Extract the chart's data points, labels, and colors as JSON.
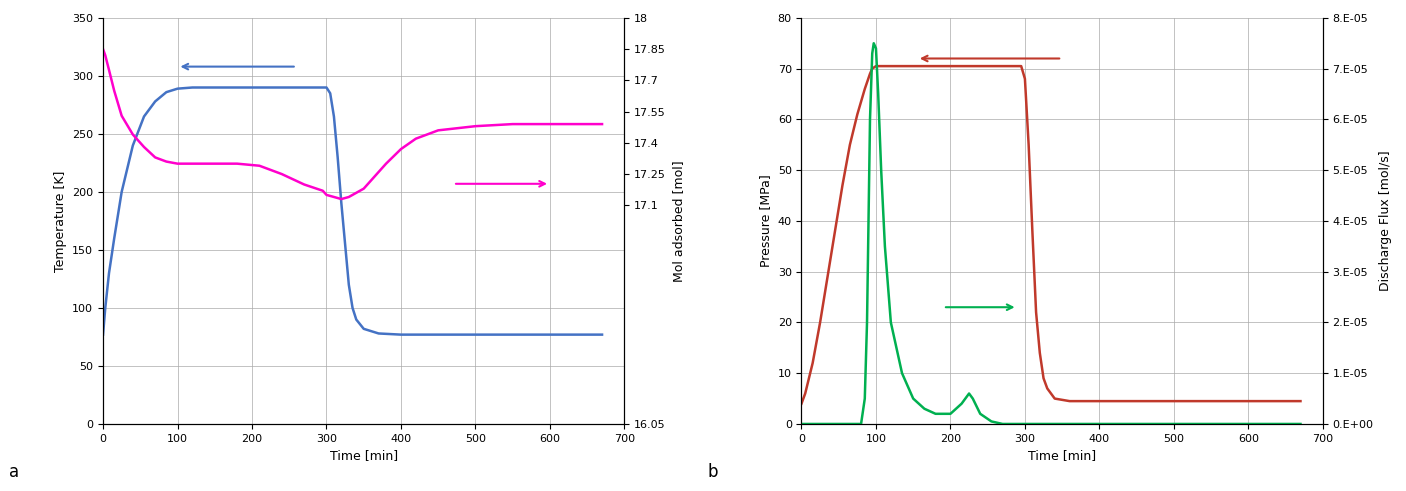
{
  "left": {
    "xlabel": "Time [min]",
    "ylabel_left": "Temperature [K]",
    "ylabel_right": "Mol adsorbed [mol]",
    "xlim": [
      0,
      700
    ],
    "ylim_left": [
      0,
      350
    ],
    "ylim_right": [
      16.05,
      18
    ],
    "yticks_left": [
      0,
      50,
      100,
      150,
      200,
      250,
      300,
      350
    ],
    "yticks_right": [
      16.05,
      17.1,
      17.25,
      17.4,
      17.55,
      17.7,
      17.85,
      18
    ],
    "ytick_labels_right": [
      "16.05",
      "17.1",
      "17.25",
      "17.4",
      "17.55",
      "17.7",
      "17.85",
      "18"
    ],
    "xticks": [
      0,
      100,
      200,
      300,
      400,
      500,
      600,
      700
    ],
    "blue_color": "#4472C4",
    "pink_color": "#FF00CC",
    "temp_x": [
      0,
      3,
      8,
      15,
      25,
      40,
      55,
      70,
      85,
      100,
      120,
      150,
      180,
      210,
      240,
      270,
      295,
      300,
      305,
      310,
      315,
      320,
      325,
      330,
      335,
      340,
      350,
      370,
      400,
      450,
      500,
      550,
      600,
      650,
      670
    ],
    "temp_y": [
      77,
      100,
      130,
      160,
      200,
      240,
      265,
      278,
      286,
      289,
      290,
      290,
      290,
      290,
      290,
      290,
      290,
      290,
      285,
      265,
      230,
      190,
      155,
      120,
      100,
      90,
      82,
      78,
      77,
      77,
      77,
      77,
      77,
      77,
      77
    ],
    "mol_x": [
      0,
      3,
      8,
      15,
      25,
      40,
      55,
      70,
      85,
      100,
      120,
      150,
      180,
      210,
      240,
      270,
      295,
      300,
      310,
      320,
      330,
      340,
      350,
      360,
      380,
      400,
      420,
      450,
      500,
      550,
      600,
      650,
      670
    ],
    "mol_y": [
      17.85,
      17.82,
      17.75,
      17.65,
      17.53,
      17.44,
      17.38,
      17.33,
      17.31,
      17.3,
      17.3,
      17.3,
      17.3,
      17.29,
      17.25,
      17.2,
      17.17,
      17.15,
      17.14,
      17.13,
      17.14,
      17.16,
      17.18,
      17.22,
      17.3,
      17.37,
      17.42,
      17.46,
      17.48,
      17.49,
      17.49,
      17.49,
      17.49
    ],
    "blue_arrow": {
      "x_start": 260,
      "x_end": 100,
      "y": 308
    },
    "pink_arrow": {
      "x_start": 470,
      "x_end": 600,
      "y": 207
    }
  },
  "right": {
    "xlabel": "Time [min]",
    "ylabel_left": "Pressure [MPa]",
    "ylabel_right": "Discharge Flux [mol/s]",
    "xlim": [
      0,
      700
    ],
    "ylim_left": [
      0,
      80
    ],
    "ylim_right": [
      0.0,
      8e-05
    ],
    "yticks_left": [
      0,
      10,
      20,
      30,
      40,
      50,
      60,
      70,
      80
    ],
    "yticks_right": [
      0,
      1e-05,
      2e-05,
      3e-05,
      4e-05,
      5e-05,
      6e-05,
      7e-05,
      8e-05
    ],
    "ytick_labels_right": [
      "0.E+00",
      "1.E-05",
      "2.E-05",
      "3.E-05",
      "4.E-05",
      "5.E-05",
      "6.E-05",
      "7.E-05",
      "8.E-05"
    ],
    "xticks": [
      0,
      100,
      200,
      300,
      400,
      500,
      600,
      700
    ],
    "red_color": "#C0392B",
    "green_color": "#00B050",
    "pressure_x": [
      0,
      5,
      15,
      25,
      35,
      45,
      55,
      65,
      75,
      85,
      92,
      95,
      100,
      105,
      115,
      130,
      160,
      200,
      250,
      285,
      290,
      295,
      300,
      305,
      310,
      315,
      320,
      325,
      330,
      340,
      360,
      390,
      420,
      460,
      500,
      550,
      600,
      650,
      670
    ],
    "pressure_y": [
      4,
      6,
      12,
      20,
      29,
      38,
      47,
      55,
      61,
      66,
      69,
      70,
      70.5,
      70.5,
      70.5,
      70.5,
      70.5,
      70.5,
      70.5,
      70.5,
      70.5,
      70.5,
      68,
      55,
      38,
      22,
      14,
      9,
      7,
      5,
      4.5,
      4.5,
      4.5,
      4.5,
      4.5,
      4.5,
      4.5,
      4.5,
      4.5
    ],
    "flux_x": [
      0,
      50,
      80,
      85,
      88,
      90,
      92,
      95,
      97,
      100,
      103,
      107,
      112,
      120,
      135,
      150,
      165,
      180,
      200,
      215,
      220,
      225,
      230,
      240,
      255,
      270,
      280,
      285,
      290,
      300,
      350,
      400,
      450,
      500,
      550,
      600,
      650,
      670
    ],
    "flux_y": [
      0,
      0,
      0,
      5e-06,
      2e-05,
      4e-05,
      6e-05,
      7.3e-05,
      7.5e-05,
      7.4e-05,
      6.5e-05,
      5e-05,
      3.5e-05,
      2e-05,
      1e-05,
      5e-06,
      3e-06,
      2e-06,
      2e-06,
      4e-06,
      5e-06,
      6e-06,
      5e-06,
      2e-06,
      5e-07,
      0,
      0,
      0,
      0,
      0,
      0,
      0,
      0,
      0,
      0,
      0,
      0,
      0
    ],
    "red_arrow": {
      "x_start": 350,
      "x_end": 155,
      "y": 72
    },
    "green_arrow": {
      "x_start": 190,
      "x_end": 290,
      "y": 23
    }
  }
}
